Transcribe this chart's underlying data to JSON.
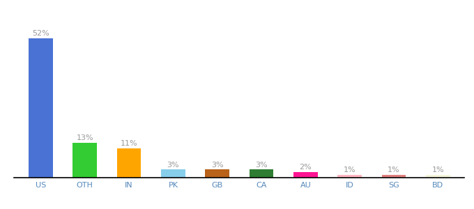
{
  "categories": [
    "US",
    "OTH",
    "IN",
    "PK",
    "GB",
    "CA",
    "AU",
    "ID",
    "SG",
    "BD"
  ],
  "values": [
    52,
    13,
    11,
    3,
    3,
    3,
    2,
    1,
    1,
    1
  ],
  "bar_colors": [
    "#4A72D5",
    "#33CC33",
    "#FFA500",
    "#87CEEB",
    "#B8621A",
    "#2E7D32",
    "#FF1493",
    "#FFB6C1",
    "#E08080",
    "#F5F5DC"
  ],
  "ylabel": "",
  "xlabel": "",
  "ylim": [
    0,
    60
  ],
  "label_fontsize": 8,
  "tick_fontsize": 8,
  "label_color": "#999999",
  "tick_color": "#5588BB",
  "background_color": "#ffffff",
  "bar_width": 0.55
}
